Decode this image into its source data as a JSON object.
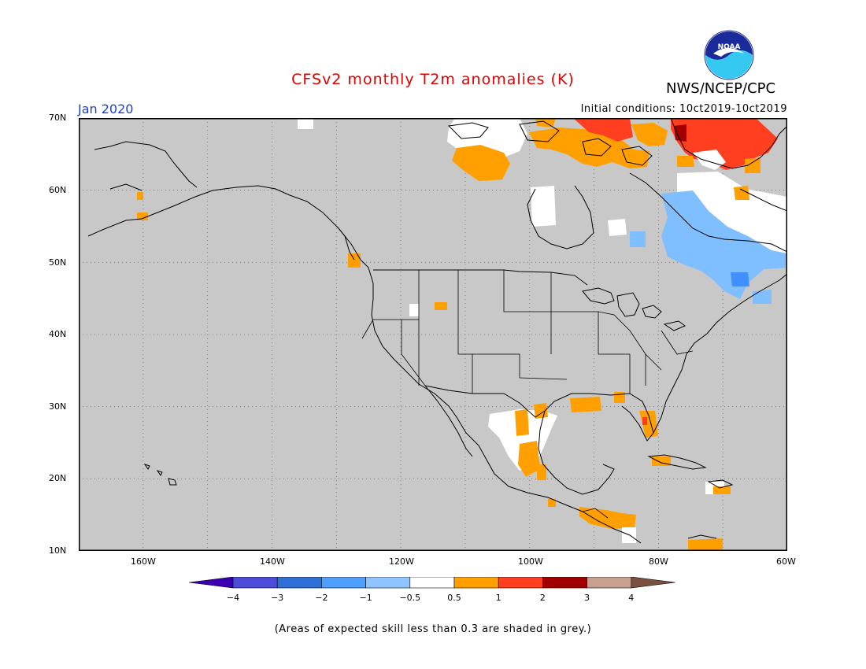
{
  "header": {
    "title": "CFSv2 monthly T2m anomalies (K)",
    "org": "NWS/NCEP/CPC",
    "month": "Jan 2020",
    "init": "Initial conditions: 10ct2019-10ct2019",
    "logo_text": "NOAA"
  },
  "map": {
    "lat_ticks": [
      "70N",
      "60N",
      "50N",
      "40N",
      "30N",
      "20N",
      "10N"
    ],
    "lon_ticks": [
      "160W",
      "140W",
      "120W",
      "100W",
      "80W",
      "60W"
    ],
    "background_color": "#c8c8c8",
    "grid": "dotted",
    "anomaly_colors": {
      "white": "#ffffff",
      "orange": "#ff9f00",
      "red": "#ff3f1f",
      "darkred": "#a00000",
      "lightblue": "#7fbfff",
      "blue": "#3f8fff"
    }
  },
  "colorbar": {
    "labels": [
      "−4",
      "−3",
      "−2",
      "−1",
      "−0.5",
      "0.5",
      "1",
      "2",
      "3",
      "4"
    ],
    "colors": [
      "#3b00b0",
      "#4c4cd8",
      "#2f6fd8",
      "#4f9fff",
      "#8fc4ff",
      "#ffffff",
      "#ff9f00",
      "#ff3f1f",
      "#a00000",
      "#c8a090",
      "#7a5040"
    ]
  },
  "footnote": "(Areas of expected skill less than 0.3 are shaded in grey.)"
}
